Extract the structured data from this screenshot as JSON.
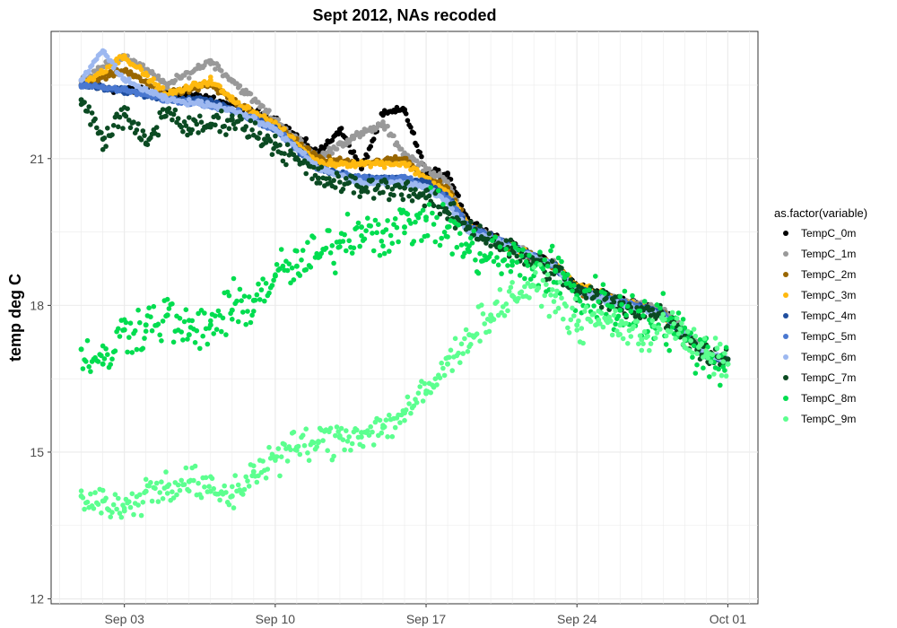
{
  "chart_data": {
    "type": "scatter",
    "title": "Sept 2012, NAs recoded",
    "xlabel": "",
    "ylabel": "temp deg C",
    "x_ticks": [
      "Sep 03",
      "Sep 10",
      "Sep 17",
      "Sep 24",
      "Oct 01"
    ],
    "y_ticks": [
      "12",
      "15",
      "18",
      "21"
    ],
    "xlim": [
      "2012-09-01",
      "2012-10-01"
    ],
    "ylim": [
      12,
      23.6
    ],
    "grid": true,
    "legend": {
      "title": "as.factor(variable)",
      "position": "right"
    },
    "series": [
      {
        "name": "TempC_0m",
        "color": "#000000",
        "points": [
          [
            "2012-09-01",
            22.5
          ],
          [
            "2012-09-03",
            22.4
          ],
          [
            "2012-09-06",
            22.3
          ],
          [
            "2012-09-08",
            22.1
          ],
          [
            "2012-09-10",
            21.8
          ],
          [
            "2012-09-12",
            21.1
          ],
          [
            "2012-09-13",
            21.6
          ],
          [
            "2012-09-14",
            20.8
          ],
          [
            "2012-09-15",
            21.9
          ],
          [
            "2012-09-16",
            22.0
          ],
          [
            "2012-09-17",
            20.7
          ],
          [
            "2012-09-18",
            20.7
          ],
          [
            "2012-09-19",
            19.7
          ],
          [
            "2012-09-21",
            19.2
          ],
          [
            "2012-09-23",
            18.8
          ],
          [
            "2012-09-24",
            18.4
          ],
          [
            "2012-09-26",
            18.1
          ],
          [
            "2012-09-28",
            17.9
          ],
          [
            "2012-09-30",
            17.0
          ],
          [
            "2012-10-01",
            16.9
          ]
        ]
      },
      {
        "name": "TempC_1m",
        "color": "#999999",
        "points": [
          [
            "2012-09-01",
            22.6
          ],
          [
            "2012-09-03",
            23.1
          ],
          [
            "2012-09-05",
            22.5
          ],
          [
            "2012-09-07",
            23.0
          ],
          [
            "2012-09-08",
            22.6
          ],
          [
            "2012-09-10",
            21.8
          ],
          [
            "2012-09-12",
            21.0
          ],
          [
            "2012-09-13",
            21.3
          ],
          [
            "2012-09-15",
            21.7
          ],
          [
            "2012-09-16",
            21.1
          ],
          [
            "2012-09-17",
            20.8
          ],
          [
            "2012-09-18",
            20.5
          ],
          [
            "2012-09-19",
            19.6
          ],
          [
            "2012-09-21",
            19.2
          ],
          [
            "2012-09-23",
            18.8
          ],
          [
            "2012-09-24",
            18.3
          ],
          [
            "2012-09-26",
            18.1
          ],
          [
            "2012-09-28",
            17.9
          ],
          [
            "2012-09-30",
            17.0
          ],
          [
            "2012-10-01",
            16.9
          ]
        ]
      },
      {
        "name": "TempC_2m",
        "color": "#996600",
        "points": [
          [
            "2012-09-01",
            22.5
          ],
          [
            "2012-09-03",
            22.8
          ],
          [
            "2012-09-05",
            22.3
          ],
          [
            "2012-09-07",
            22.5
          ],
          [
            "2012-09-08",
            22.2
          ],
          [
            "2012-09-10",
            21.7
          ],
          [
            "2012-09-12",
            21.0
          ],
          [
            "2012-09-14",
            20.9
          ],
          [
            "2012-09-16",
            21.0
          ],
          [
            "2012-09-17",
            20.6
          ],
          [
            "2012-09-18",
            20.4
          ],
          [
            "2012-09-19",
            19.6
          ],
          [
            "2012-09-21",
            19.2
          ],
          [
            "2012-09-23",
            18.8
          ],
          [
            "2012-09-24",
            18.3
          ],
          [
            "2012-09-26",
            18.1
          ],
          [
            "2012-09-28",
            17.8
          ],
          [
            "2012-09-30",
            17.0
          ],
          [
            "2012-10-01",
            16.9
          ]
        ]
      },
      {
        "name": "TempC_3m",
        "color": "#FFB90F",
        "points": [
          [
            "2012-09-01",
            22.5
          ],
          [
            "2012-09-03",
            23.1
          ],
          [
            "2012-09-05",
            22.3
          ],
          [
            "2012-09-07",
            22.6
          ],
          [
            "2012-09-08",
            22.2
          ],
          [
            "2012-09-10",
            21.7
          ],
          [
            "2012-09-12",
            20.9
          ],
          [
            "2012-09-14",
            20.9
          ],
          [
            "2012-09-16",
            20.9
          ],
          [
            "2012-09-17",
            20.6
          ],
          [
            "2012-09-18",
            20.3
          ],
          [
            "2012-09-19",
            19.6
          ],
          [
            "2012-09-21",
            19.2
          ],
          [
            "2012-09-23",
            18.8
          ],
          [
            "2012-09-24",
            18.4
          ],
          [
            "2012-09-26",
            18.1
          ],
          [
            "2012-09-28",
            17.8
          ],
          [
            "2012-09-30",
            17.0
          ],
          [
            "2012-10-01",
            16.9
          ]
        ]
      },
      {
        "name": "TempC_4m",
        "color": "#1F4E9E",
        "points": [
          [
            "2012-09-01",
            22.5
          ],
          [
            "2012-09-03",
            22.4
          ],
          [
            "2012-09-05",
            22.2
          ],
          [
            "2012-09-07",
            22.2
          ],
          [
            "2012-09-08",
            22.0
          ],
          [
            "2012-09-10",
            21.6
          ],
          [
            "2012-09-12",
            20.8
          ],
          [
            "2012-09-14",
            20.6
          ],
          [
            "2012-09-16",
            20.6
          ],
          [
            "2012-09-17",
            20.5
          ],
          [
            "2012-09-18",
            20.2
          ],
          [
            "2012-09-19",
            19.6
          ],
          [
            "2012-09-21",
            19.2
          ],
          [
            "2012-09-23",
            18.8
          ],
          [
            "2012-09-24",
            18.3
          ],
          [
            "2012-09-26",
            18.1
          ],
          [
            "2012-09-28",
            17.8
          ],
          [
            "2012-09-30",
            17.0
          ],
          [
            "2012-10-01",
            16.9
          ]
        ]
      },
      {
        "name": "TempC_5m",
        "color": "#4A78D0",
        "points": [
          [
            "2012-09-01",
            22.5
          ],
          [
            "2012-09-03",
            22.4
          ],
          [
            "2012-09-05",
            22.2
          ],
          [
            "2012-09-07",
            22.1
          ],
          [
            "2012-09-08",
            22.0
          ],
          [
            "2012-09-10",
            21.6
          ],
          [
            "2012-09-12",
            20.8
          ],
          [
            "2012-09-14",
            20.6
          ],
          [
            "2012-09-16",
            20.6
          ],
          [
            "2012-09-17",
            20.4
          ],
          [
            "2012-09-18",
            20.2
          ],
          [
            "2012-09-19",
            19.6
          ],
          [
            "2012-09-21",
            19.2
          ],
          [
            "2012-09-23",
            18.8
          ],
          [
            "2012-09-24",
            18.3
          ],
          [
            "2012-09-26",
            18.1
          ],
          [
            "2012-09-28",
            17.8
          ],
          [
            "2012-09-30",
            17.0
          ],
          [
            "2012-10-01",
            16.9
          ]
        ]
      },
      {
        "name": "TempC_6m",
        "color": "#9DB8F0",
        "points": [
          [
            "2012-09-01",
            22.6
          ],
          [
            "2012-09-02",
            23.2
          ],
          [
            "2012-09-03",
            22.6
          ],
          [
            "2012-09-05",
            22.2
          ],
          [
            "2012-09-07",
            22.1
          ],
          [
            "2012-09-08",
            22.0
          ],
          [
            "2012-09-10",
            21.6
          ],
          [
            "2012-09-12",
            20.8
          ],
          [
            "2012-09-14",
            20.5
          ],
          [
            "2012-09-16",
            20.5
          ],
          [
            "2012-09-17",
            20.4
          ],
          [
            "2012-09-18",
            20.1
          ],
          [
            "2012-09-19",
            19.5
          ],
          [
            "2012-09-21",
            19.2
          ],
          [
            "2012-09-23",
            18.8
          ],
          [
            "2012-09-24",
            18.3
          ],
          [
            "2012-09-26",
            18.0
          ],
          [
            "2012-09-28",
            17.8
          ],
          [
            "2012-09-30",
            17.0
          ],
          [
            "2012-10-01",
            16.9
          ]
        ]
      },
      {
        "name": "TempC_7m",
        "color": "#0B4A22",
        "points": [
          [
            "2012-09-01",
            22.2
          ],
          [
            "2012-09-02",
            21.4
          ],
          [
            "2012-09-03",
            21.9
          ],
          [
            "2012-09-04",
            21.3
          ],
          [
            "2012-09-05",
            22.0
          ],
          [
            "2012-09-06",
            21.6
          ],
          [
            "2012-09-07",
            21.7
          ],
          [
            "2012-09-08",
            21.8
          ],
          [
            "2012-09-10",
            21.3
          ],
          [
            "2012-09-12",
            20.6
          ],
          [
            "2012-09-14",
            20.4
          ],
          [
            "2012-09-16",
            20.4
          ],
          [
            "2012-09-17",
            20.2
          ],
          [
            "2012-09-18",
            19.9
          ],
          [
            "2012-09-19",
            19.6
          ],
          [
            "2012-09-21",
            19.1
          ],
          [
            "2012-09-23",
            18.7
          ],
          [
            "2012-09-24",
            18.3
          ],
          [
            "2012-09-26",
            18.0
          ],
          [
            "2012-09-28",
            17.8
          ],
          [
            "2012-09-30",
            17.0
          ],
          [
            "2012-10-01",
            16.9
          ]
        ]
      },
      {
        "name": "TempC_8m",
        "color": "#00DD4F",
        "points": [
          [
            "2012-09-01",
            17.1
          ],
          [
            "2012-09-02",
            16.8
          ],
          [
            "2012-09-03",
            17.5
          ],
          [
            "2012-09-04",
            17.6
          ],
          [
            "2012-09-05",
            17.8
          ],
          [
            "2012-09-06",
            17.4
          ],
          [
            "2012-09-07",
            17.6
          ],
          [
            "2012-09-08",
            17.9
          ],
          [
            "2012-09-09",
            18.1
          ],
          [
            "2012-09-10",
            18.6
          ],
          [
            "2012-09-11",
            18.8
          ],
          [
            "2012-09-12",
            19.0
          ],
          [
            "2012-09-13",
            19.3
          ],
          [
            "2012-09-14",
            19.6
          ],
          [
            "2012-09-15",
            19.5
          ],
          [
            "2012-09-16",
            19.6
          ],
          [
            "2012-09-17",
            19.8
          ],
          [
            "2012-09-18",
            19.6
          ],
          [
            "2012-09-19",
            19.1
          ],
          [
            "2012-09-21",
            18.9
          ],
          [
            "2012-09-23",
            18.7
          ],
          [
            "2012-09-24",
            18.2
          ],
          [
            "2012-09-26",
            17.9
          ],
          [
            "2012-09-28",
            17.7
          ],
          [
            "2012-09-30",
            17.0
          ],
          [
            "2012-10-01",
            16.8
          ]
        ]
      },
      {
        "name": "TempC_9m",
        "color": "#5CFF8F",
        "points": [
          [
            "2012-09-01",
            14.1
          ],
          [
            "2012-09-02",
            14.0
          ],
          [
            "2012-09-03",
            13.8
          ],
          [
            "2012-09-04",
            14.2
          ],
          [
            "2012-09-05",
            14.3
          ],
          [
            "2012-09-06",
            14.4
          ],
          [
            "2012-09-07",
            14.2
          ],
          [
            "2012-09-08",
            14.1
          ],
          [
            "2012-09-09",
            14.6
          ],
          [
            "2012-09-10",
            14.9
          ],
          [
            "2012-09-11",
            15.1
          ],
          [
            "2012-09-12",
            15.2
          ],
          [
            "2012-09-13",
            15.3
          ],
          [
            "2012-09-14",
            15.4
          ],
          [
            "2012-09-15",
            15.5
          ],
          [
            "2012-09-16",
            15.8
          ],
          [
            "2012-09-17",
            16.2
          ],
          [
            "2012-09-18",
            16.8
          ],
          [
            "2012-09-19",
            17.4
          ],
          [
            "2012-09-20",
            17.8
          ],
          [
            "2012-09-21",
            18.2
          ],
          [
            "2012-09-22",
            18.4
          ],
          [
            "2012-09-23",
            18.2
          ],
          [
            "2012-09-24",
            17.6
          ],
          [
            "2012-09-25",
            17.7
          ],
          [
            "2012-09-26",
            17.6
          ],
          [
            "2012-09-27",
            17.3
          ],
          [
            "2012-09-28",
            17.7
          ],
          [
            "2012-09-29",
            17.3
          ],
          [
            "2012-09-30",
            17.0
          ],
          [
            "2012-10-01",
            16.8
          ]
        ]
      }
    ]
  }
}
